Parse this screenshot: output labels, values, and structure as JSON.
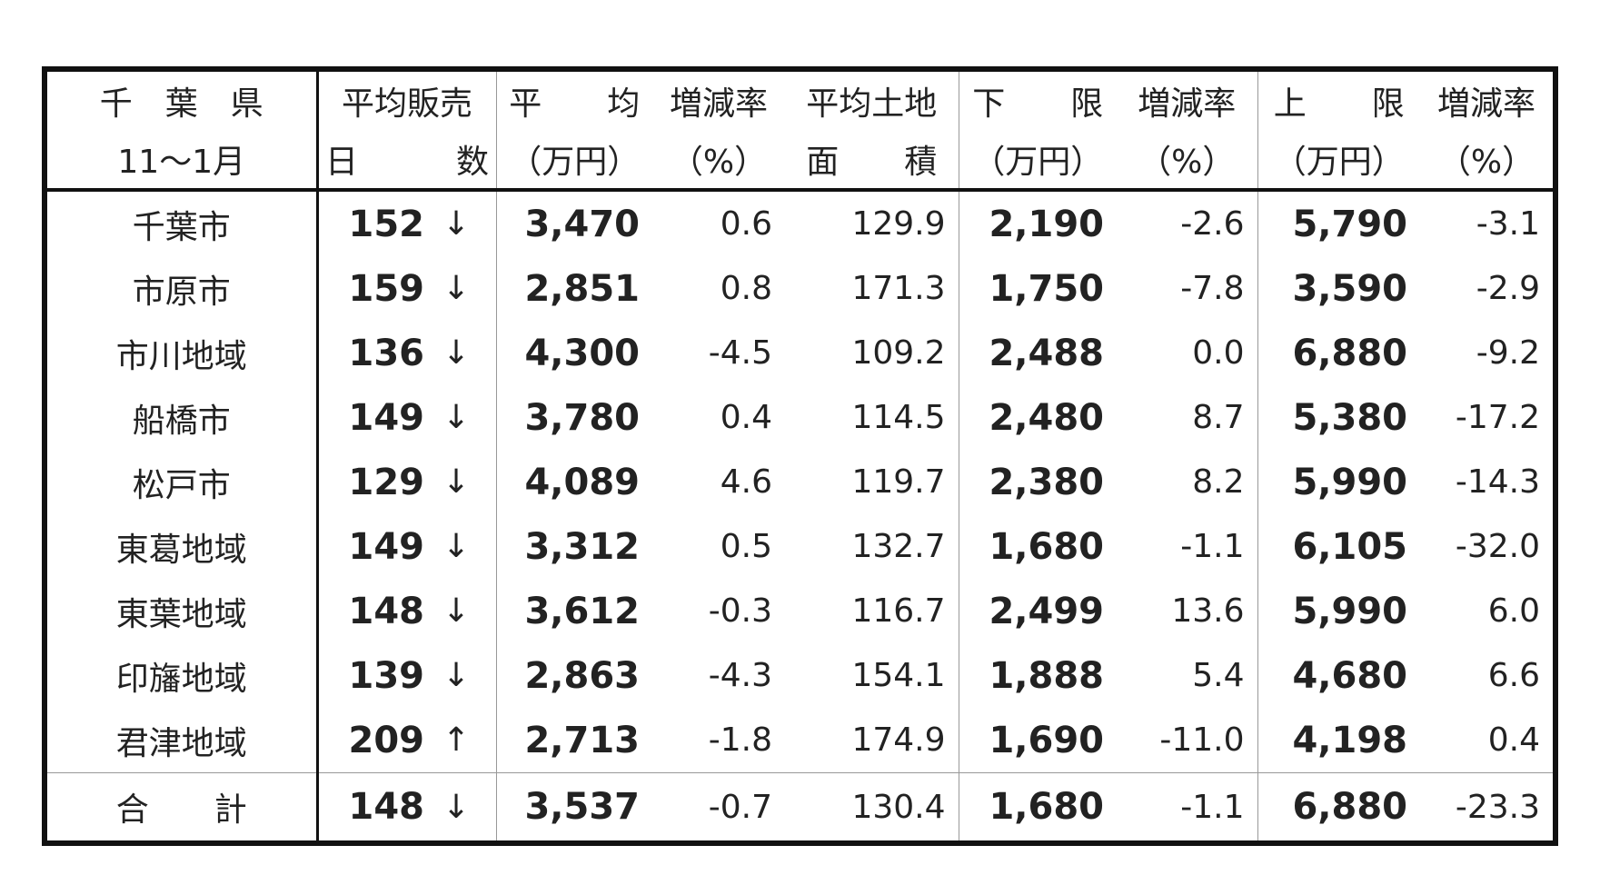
{
  "header": {
    "row1": [
      "千　葉　県",
      "平均販売",
      "平　　均",
      "増減率",
      "平均土地",
      "下　　限",
      "増減率",
      "上　　限",
      "増減率"
    ],
    "row2": [
      "11～1月",
      "日　　　数",
      "（万円）",
      "（%）",
      "面　　積",
      "（万円）",
      "（%）",
      "（万円）",
      "（%）"
    ]
  },
  "table": {
    "rows": [
      [
        "千葉市",
        "152",
        "↓",
        "3,470",
        "0.6",
        "129.9",
        "2,190",
        "-2.6",
        "5,790",
        "-3.1"
      ],
      [
        "市原市",
        "159",
        "↓",
        "2,851",
        "0.8",
        "171.3",
        "1,750",
        "-7.8",
        "3,590",
        "-2.9"
      ],
      [
        "市川地域",
        "136",
        "↓",
        "4,300",
        "-4.5",
        "109.2",
        "2,488",
        "0.0",
        "6,880",
        "-9.2"
      ],
      [
        "船橋市",
        "149",
        "↓",
        "3,780",
        "0.4",
        "114.5",
        "2,480",
        "8.7",
        "5,380",
        "-17.2"
      ],
      [
        "松戸市",
        "129",
        "↓",
        "4,089",
        "4.6",
        "119.7",
        "2,380",
        "8.2",
        "5,990",
        "-14.3"
      ],
      [
        "東葛地域",
        "149",
        "↓",
        "3,312",
        "0.5",
        "132.7",
        "1,680",
        "-1.1",
        "6,105",
        "-32.0"
      ],
      [
        "東葉地域",
        "148",
        "↓",
        "3,612",
        "-0.3",
        "116.7",
        "2,499",
        "13.6",
        "5,990",
        "6.0"
      ],
      [
        "印旛地域",
        "139",
        "↓",
        "2,863",
        "-4.3",
        "154.1",
        "1,888",
        "5.4",
        "4,680",
        "6.6"
      ],
      [
        "君津地域",
        "209",
        "↑",
        "2,713",
        "-1.8",
        "174.9",
        "1,690",
        "-11.0",
        "4,198",
        "0.4"
      ]
    ],
    "total": [
      "合　　計",
      "148",
      "↓",
      "3,537",
      "-0.7",
      "130.4",
      "1,680",
      "-1.1",
      "6,880",
      "-23.3"
    ]
  }
}
